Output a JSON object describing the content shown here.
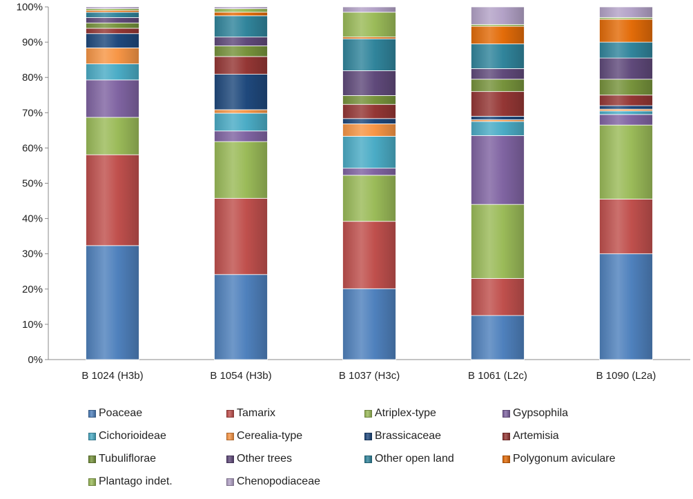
{
  "chart_data": {
    "type": "bar",
    "stacked": true,
    "normalized": true,
    "categories": [
      "B 1024 (H3b)",
      "B 1054 (H3b)",
      "B 1037 (H3c)",
      "B 1061 (L2c)",
      "B 1090 (L2a)"
    ],
    "ylim": [
      0,
      100
    ],
    "yticks": [
      "0%",
      "10%",
      "20%",
      "30%",
      "40%",
      "50%",
      "60%",
      "70%",
      "80%",
      "90%",
      "100%"
    ],
    "grid": false,
    "legend_position": "bottom",
    "series": [
      {
        "name": "Poaceae",
        "color": "#4f81bd",
        "values": [
          32,
          24,
          20,
          12.5,
          30
        ]
      },
      {
        "name": "Tamarix",
        "color": "#c0504d",
        "values": [
          25.5,
          21.5,
          19,
          10.5,
          15.5
        ]
      },
      {
        "name": "Atriplex-type",
        "color": "#9bbb59",
        "values": [
          10.5,
          16,
          13,
          21,
          21
        ]
      },
      {
        "name": "Gypsophila",
        "color": "#8064a2",
        "values": [
          10.5,
          3,
          2,
          19.5,
          3
        ]
      },
      {
        "name": "Cichorioideae",
        "color": "#4bacc6",
        "values": [
          4.5,
          5,
          9,
          4,
          1
        ]
      },
      {
        "name": "Cerealia-type",
        "color": "#f79646",
        "values": [
          4.5,
          1,
          3.5,
          0.5,
          0.5
        ]
      },
      {
        "name": "Brassicaceae",
        "color": "#1f497d",
        "values": [
          4,
          10,
          1.5,
          1,
          1
        ]
      },
      {
        "name": "Artemisia",
        "color": "#953735",
        "values": [
          1.5,
          5,
          4,
          7,
          3
        ]
      },
      {
        "name": "Tubuliflorae",
        "color": "#77933c",
        "values": [
          1.5,
          3,
          2.5,
          3.5,
          4.5
        ]
      },
      {
        "name": "Other trees",
        "color": "#604a7b",
        "values": [
          1.5,
          2.5,
          7,
          3,
          6
        ]
      },
      {
        "name": "Other open land",
        "color": "#31859c",
        "values": [
          1.5,
          6,
          9,
          7,
          4.5
        ]
      },
      {
        "name": "Polygonum aviculare",
        "color": "#e36c09",
        "values": [
          0.5,
          1,
          0.5,
          5,
          6.5
        ]
      },
      {
        "name": "Plantago indet.",
        "color": "#9bbb59",
        "values": [
          0.5,
          1,
          7,
          0.5,
          0.5
        ]
      },
      {
        "name": "Chenopodiaceae",
        "color": "#b3a2c7",
        "values": [
          0.5,
          0.5,
          1.5,
          5,
          3
        ]
      }
    ]
  }
}
